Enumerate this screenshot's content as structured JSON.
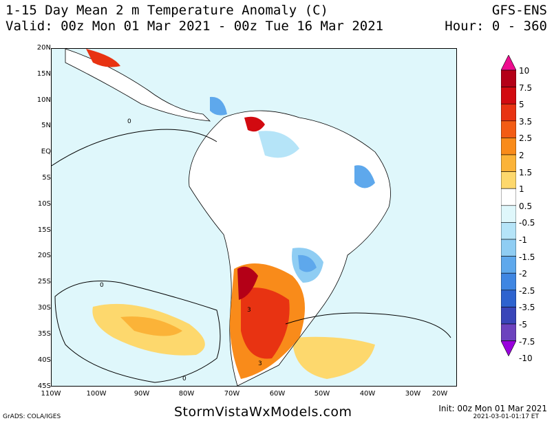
{
  "header": {
    "title": "1-15 Day Mean 2 m Temperature Anomaly (C)",
    "valid": "Valid: 00z Mon 01 Mar 2021 - 00z Tue 16 Mar 2021",
    "model": "GFS-ENS",
    "hour": "Hour: 0 - 360"
  },
  "map": {
    "lat_labels": [
      "20N",
      "15N",
      "10N",
      "5N",
      "EQ",
      "5S",
      "10S",
      "15S",
      "20S",
      "25S",
      "30S",
      "35S",
      "40S",
      "45S"
    ],
    "lon_labels": [
      "110W",
      "100W",
      "90W",
      "80W",
      "70W",
      "60W",
      "50W",
      "40W",
      "30W",
      "20W"
    ],
    "contour_labels": [
      "0",
      "0",
      "0",
      "0",
      "0",
      "0",
      "0",
      "3",
      "3",
      "0",
      "0"
    ]
  },
  "colorbar": {
    "labels": [
      "10",
      "7.5",
      "5",
      "3.5",
      "2.5",
      "2",
      "1.5",
      "1",
      "0.5",
      "-0.5",
      "-1",
      "-1.5",
      "-2",
      "-2.5",
      "-3.5",
      "-5",
      "-7.5",
      "-10"
    ],
    "colors": [
      "#ee0d8f",
      "#b40017",
      "#d20a10",
      "#e83312",
      "#f35c14",
      "#f98b1a",
      "#fbb338",
      "#fdd86d",
      "#ffffff",
      "#dff7fb",
      "#b5e4f8",
      "#8fcdf3",
      "#5ea8ec",
      "#3f86e2",
      "#2e63cf",
      "#3945b9",
      "#6c43be",
      "#9900dd"
    ]
  },
  "footer": {
    "credit": "GrADS: COLA/IGES",
    "site": "StormVistaWxModels.com",
    "init": "Init: 00z Mon 01 Mar 2021",
    "timestamp": "2021-03-01-01:17 ET"
  }
}
